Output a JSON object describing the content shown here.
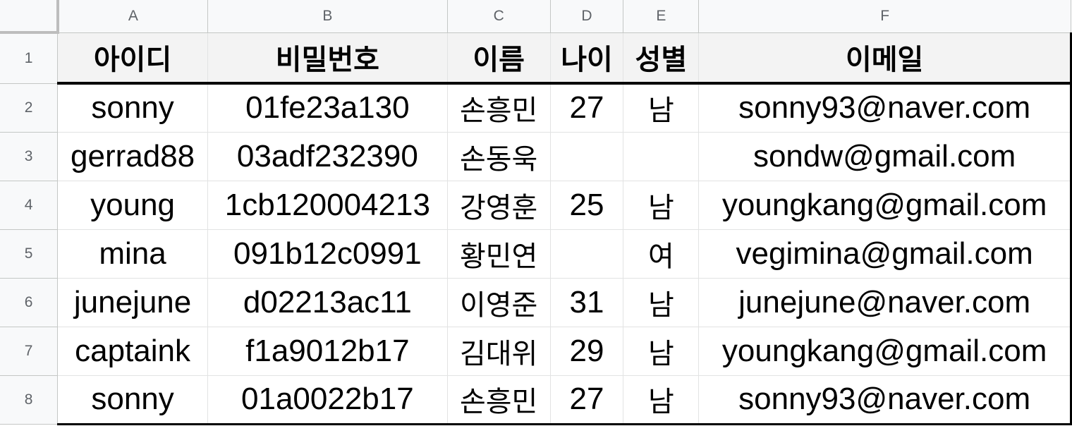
{
  "columns": [
    "A",
    "B",
    "C",
    "D",
    "E",
    "F"
  ],
  "rows": [
    "1",
    "2",
    "3",
    "4",
    "5",
    "6",
    "7",
    "8"
  ],
  "header": [
    "아이디",
    "비밀번호",
    "이름",
    "나이",
    "성별",
    "이메일"
  ],
  "data": [
    [
      "sonny",
      "01fe23a130",
      "손흥민",
      "27",
      "남",
      "sonny93@naver.com"
    ],
    [
      "gerrad88",
      "03adf232390",
      "손동욱",
      "",
      "",
      "sondw@gmail.com"
    ],
    [
      "young",
      "1cb120004213",
      "강영훈",
      "25",
      "남",
      "youngkang@gmail.com"
    ],
    [
      "mina",
      "091b12c0991",
      "황민연",
      "",
      "여",
      "vegimina@gmail.com"
    ],
    [
      "junejune",
      "d02213ac11",
      "이영준",
      "31",
      "남",
      "junejune@naver.com"
    ],
    [
      "captaink",
      "f1a9012b17",
      "김대위",
      "29",
      "남",
      "youngkang@gmail.com"
    ],
    [
      "sonny",
      "01a0022b17",
      "손흥민",
      "27",
      "남",
      "sonny93@naver.com"
    ]
  ]
}
